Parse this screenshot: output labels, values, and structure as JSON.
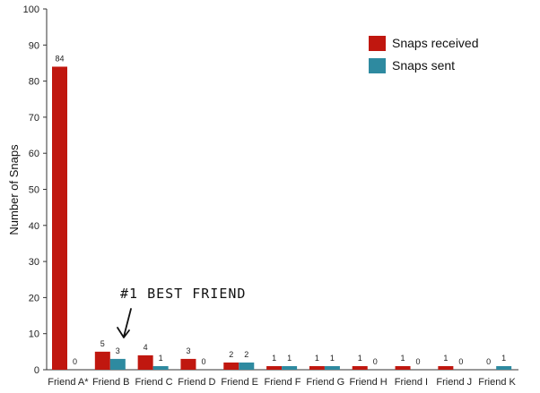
{
  "chart_data": {
    "type": "bar",
    "ylabel": "Number of Snaps",
    "ylim": [
      0,
      100
    ],
    "yticks": [
      0,
      10,
      20,
      30,
      40,
      50,
      60,
      70,
      80,
      90,
      100
    ],
    "categories": [
      "Friend A*",
      "Friend B",
      "Friend C",
      "Friend D",
      "Friend E",
      "Friend F",
      "Friend G",
      "Friend H",
      "Friend I",
      "Friend J",
      "Friend K"
    ],
    "series": [
      {
        "name": "Snaps received",
        "color": "#c0170f",
        "values": [
          84,
          5,
          4,
          3,
          2,
          1,
          1,
          1,
          1,
          1,
          0
        ]
      },
      {
        "name": "Snaps sent",
        "color": "#2e8aa0",
        "values": [
          0,
          3,
          1,
          0,
          2,
          1,
          1,
          0,
          0,
          0,
          1
        ]
      }
    ],
    "legend_position": "top-right",
    "annotation": {
      "text": "#1 BEST FRIEND",
      "target_category": "Friend B"
    }
  }
}
